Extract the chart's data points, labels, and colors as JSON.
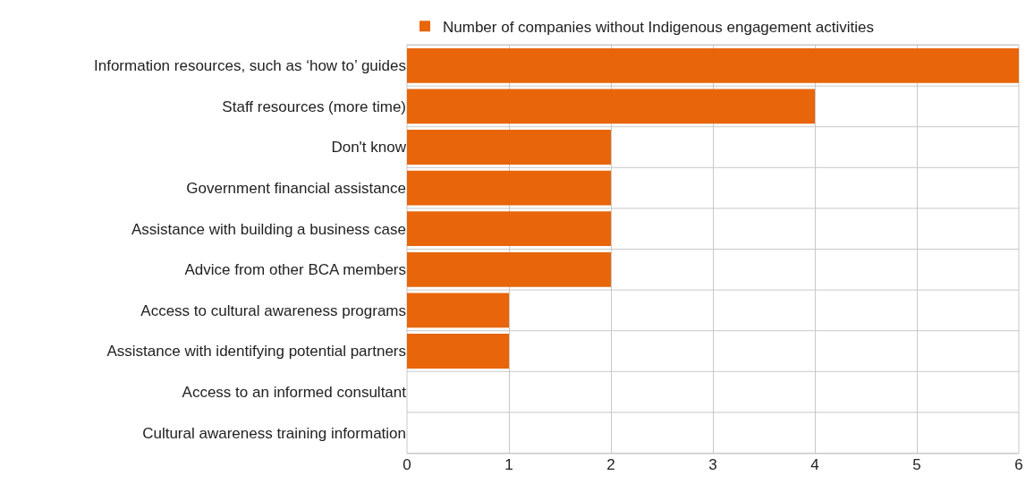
{
  "chart_data": {
    "type": "bar",
    "orientation": "horizontal",
    "categories": [
      "Information resources, such as ‘how to’ guides",
      "Staff resources (more time)",
      "Don't know",
      "Government financial assistance",
      "Assistance with building a business case",
      "Advice from other BCA members",
      "Access to cultural awareness programs",
      "Assistance with identifying potential partners",
      "Access to an informed consultant",
      "Cultural awareness training information"
    ],
    "series": [
      {
        "name": "Number of companies without Indigenous engagement activities",
        "color": "#e8650a",
        "values": [
          6,
          4,
          2,
          2,
          2,
          2,
          1,
          1,
          0,
          0
        ]
      }
    ],
    "xlim": [
      0,
      6
    ],
    "xticks": [
      0,
      1,
      2,
      3,
      4,
      5,
      6
    ],
    "grid": true,
    "legend": "top"
  }
}
